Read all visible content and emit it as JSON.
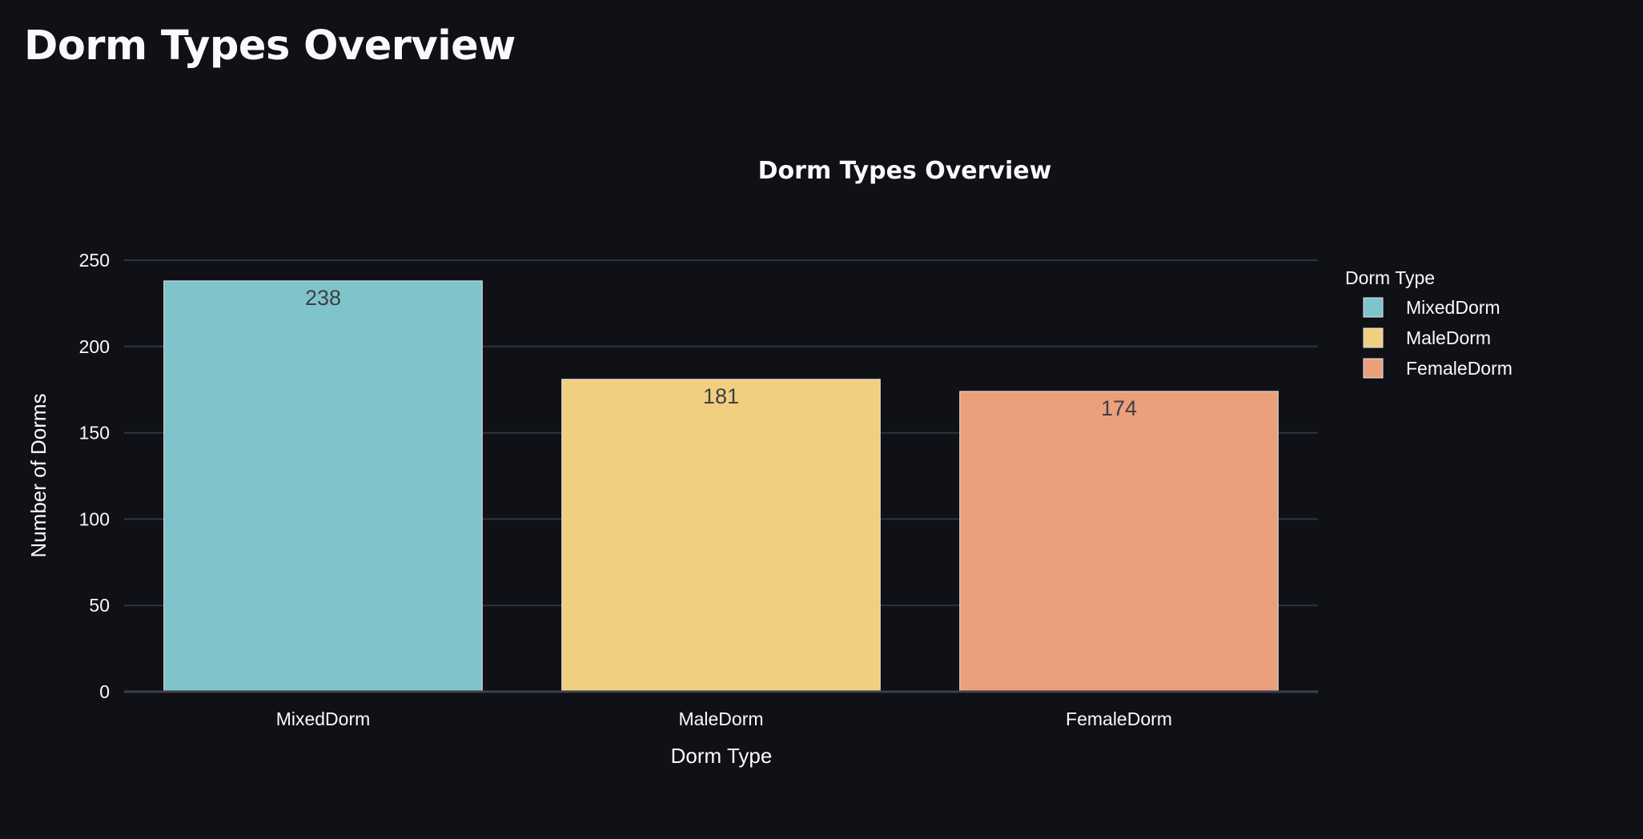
{
  "page": {
    "title": "Dorm Types Overview"
  },
  "chart_data": {
    "type": "bar",
    "title": "Dorm Types Overview",
    "xlabel": "Dorm Type",
    "ylabel": "Number of Dorms",
    "categories": [
      "MixedDorm",
      "MaleDorm",
      "FemaleDorm"
    ],
    "values": [
      238,
      181,
      174
    ],
    "colors": [
      "#7fc4ca",
      "#f0cf80",
      "#eb9f7c"
    ],
    "ylim": [
      0,
      250
    ],
    "yticks": [
      0,
      50,
      100,
      150,
      200,
      250
    ],
    "grid": true,
    "legend": {
      "title": "Dorm Type",
      "placement": "right",
      "entries": [
        "MixedDorm",
        "MaleDorm",
        "FemaleDorm"
      ]
    },
    "background": "#0f1117",
    "grid_color": "#31333f",
    "label_color": "#fafafa",
    "data_label_color": "#3d3f45"
  }
}
